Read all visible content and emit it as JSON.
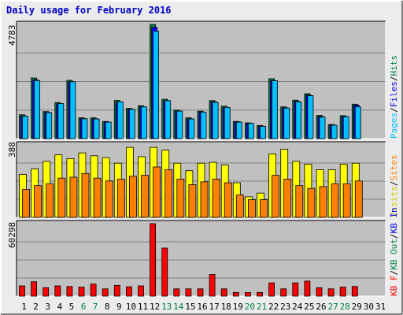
{
  "title": "Daily usage for February 2016",
  "colors": {
    "background": "#ececec",
    "panel": "#c0c0c0",
    "hits": "#008040",
    "files": "#0000ff",
    "pages": "#00c0ff",
    "visits": "#ffff00",
    "sites": "#ff8000",
    "kbin": "#008040",
    "kbout": "#0000ff",
    "kbf": "#ff0000",
    "weekend_label": "#008040",
    "weekday_label": "#000000"
  },
  "chart_data": [
    {
      "type": "bar",
      "name": "hits-files-pages",
      "ymax_label": "4783",
      "ylim": [
        0,
        4783
      ],
      "legend": [
        {
          "text": "Pages",
          "color": "#00c0ff"
        },
        {
          "text": "/",
          "color": "#000000"
        },
        {
          "text": "Files",
          "color": "#0000ff"
        },
        {
          "text": "/",
          "color": "#000000"
        },
        {
          "text": "Hits",
          "color": "#008040"
        }
      ],
      "series": [
        {
          "name": "Hits",
          "values": [
            1000,
            2540,
            1130,
            1510,
            2440,
            870,
            870,
            720,
            1600,
            1270,
            1380,
            4783,
            1650,
            1190,
            870,
            1150,
            1590,
            1360,
            720,
            660,
            550,
            2510,
            1330,
            1610,
            1880,
            970,
            590,
            960,
            1440
          ]
        },
        {
          "name": "Files",
          "values": [
            950,
            2460,
            1100,
            1460,
            2380,
            840,
            830,
            700,
            1520,
            1230,
            1330,
            4660,
            1590,
            1150,
            830,
            1110,
            1540,
            1300,
            700,
            640,
            520,
            2420,
            1290,
            1560,
            1820,
            930,
            570,
            930,
            1400
          ]
        },
        {
          "name": "Pages",
          "values": [
            940,
            2430,
            1090,
            1470,
            2380,
            830,
            820,
            690,
            1540,
            1230,
            1330,
            4500,
            1590,
            1150,
            820,
            1110,
            1520,
            1310,
            690,
            640,
            510,
            2420,
            1280,
            1540,
            1800,
            900,
            560,
            920,
            1330
          ]
        }
      ]
    },
    {
      "type": "bar",
      "name": "visits-sites",
      "ymax_label": "388",
      "ylim": [
        0,
        388
      ],
      "legend": [
        {
          "text": "Visits",
          "color": "#cccc00"
        },
        {
          "text": "/",
          "color": "#000000"
        },
        {
          "text": "Sites",
          "color": "#ff8000"
        }
      ],
      "series": [
        {
          "name": "Visits",
          "values": [
            230,
            260,
            300,
            335,
            315,
            345,
            330,
            320,
            290,
            375,
            325,
            375,
            360,
            290,
            250,
            290,
            295,
            280,
            185,
            110,
            130,
            340,
            365,
            300,
            285,
            255,
            255,
            285,
            290
          ]
        },
        {
          "name": "Sites",
          "values": [
            150,
            170,
            180,
            210,
            215,
            235,
            210,
            195,
            205,
            220,
            225,
            270,
            255,
            205,
            175,
            190,
            205,
            185,
            120,
            95,
            95,
            225,
            205,
            170,
            155,
            165,
            180,
            180,
            195
          ]
        }
      ]
    },
    {
      "type": "bar",
      "name": "kbytes",
      "ymax_label": "60298",
      "ylim": [
        0,
        60298
      ],
      "legend": [
        {
          "text": "KB F",
          "color": "#ff0000"
        },
        {
          "text": "/",
          "color": "#000000"
        },
        {
          "text": "KB Out",
          "color": "#008040"
        },
        {
          "text": "/",
          "color": "#000000"
        },
        {
          "text": "KB In",
          "color": "#0000ff"
        }
      ],
      "series": [
        {
          "name": "KB F",
          "values": [
            8500,
            12000,
            7000,
            8500,
            8000,
            7500,
            10000,
            6000,
            9000,
            7800,
            8500,
            60298,
            40000,
            6000,
            6000,
            6000,
            18000,
            6000,
            3000,
            3000,
            3000,
            11000,
            6000,
            11000,
            12500,
            7000,
            6000,
            7500,
            8000
          ]
        }
      ]
    }
  ],
  "x_axis": {
    "days": [
      "1",
      "2",
      "3",
      "4",
      "5",
      "6",
      "7",
      "8",
      "9",
      "10",
      "11",
      "12",
      "13",
      "14",
      "15",
      "16",
      "17",
      "18",
      "19",
      "20",
      "21",
      "22",
      "23",
      "24",
      "25",
      "26",
      "27",
      "28",
      "29",
      "30",
      "31"
    ],
    "weekend": [
      6,
      7,
      13,
      14,
      20,
      21,
      27,
      28
    ]
  }
}
